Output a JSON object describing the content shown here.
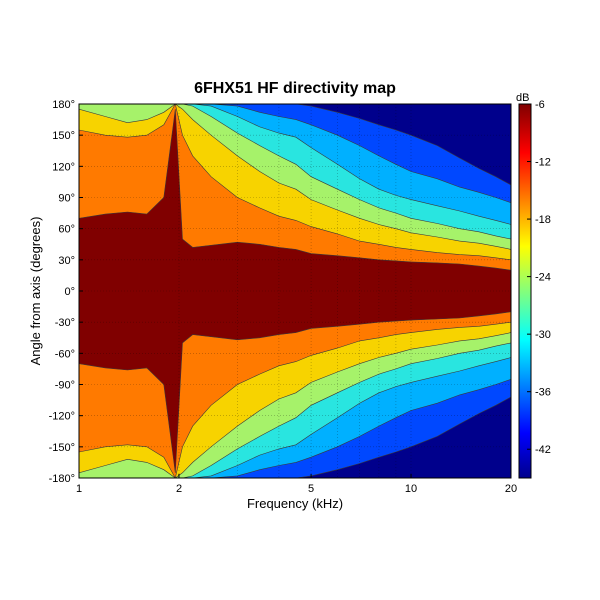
{
  "chart_data": {
    "type": "heatmap",
    "title": "6FHX51 HF directivity map",
    "xlabel": "Frequency (kHz)",
    "ylabel": "Angle from axis (degrees)",
    "x_scale": "log",
    "xlim": [
      1,
      20
    ],
    "ylim": [
      -180,
      180
    ],
    "x_ticks": [
      {
        "value": 1,
        "label": "1"
      },
      {
        "value": 2,
        "label": "2"
      },
      {
        "value": 5,
        "label": "5"
      },
      {
        "value": 10,
        "label": "10"
      },
      {
        "value": 20,
        "label": "20"
      }
    ],
    "y_ticks": [
      {
        "value": 180,
        "label": "180°"
      },
      {
        "value": 150,
        "label": "150°"
      },
      {
        "value": 120,
        "label": "120°"
      },
      {
        "value": 90,
        "label": "90°"
      },
      {
        "value": 60,
        "label": "60°"
      },
      {
        "value": 30,
        "label": "30°"
      },
      {
        "value": 0,
        "label": "0°"
      },
      {
        "value": -30,
        "label": "-30°"
      },
      {
        "value": -60,
        "label": "-60°"
      },
      {
        "value": -90,
        "label": "-90°"
      },
      {
        "value": -120,
        "label": "-120°"
      },
      {
        "value": -150,
        "label": "-150°"
      },
      {
        "value": -180,
        "label": "-180°"
      }
    ],
    "grid": true,
    "colorbar": {
      "unit_label": "dB",
      "range": [
        -45,
        -6
      ],
      "ticks": [
        {
          "value": -6,
          "label": "-6"
        },
        {
          "value": -12,
          "label": "-12"
        },
        {
          "value": -18,
          "label": "-18"
        },
        {
          "value": -24,
          "label": "-24"
        },
        {
          "value": -30,
          "label": "-30"
        },
        {
          "value": -36,
          "label": "-36"
        },
        {
          "value": -42,
          "label": "-42"
        }
      ]
    },
    "contour_levels_db": [
      -6,
      -9,
      -12,
      -15,
      -18,
      -21,
      -24,
      -27,
      -30,
      -33,
      -36,
      -39,
      -42
    ],
    "level_colors": [
      "#800000",
      "#e60000",
      "#ff7a00",
      "#f7d300",
      "#a6f26a",
      "#29e5e0",
      "#00b0ff",
      "#0048ff",
      "#00008c"
    ],
    "isolines": {
      "description": "Angle (degrees) at which the response falls below each level, by frequency (kHz); symmetric about 0°",
      "frequencies_khz": [
        1,
        1.2,
        1.4,
        1.6,
        1.8,
        1.95,
        2.05,
        2.2,
        2.5,
        3,
        3.5,
        4,
        4.5,
        5,
        6,
        7,
        8,
        9,
        10,
        12,
        14,
        16,
        18,
        20
      ],
      "levels": [
        {
          "db": -6,
          "angles": [
            70,
            74,
            76,
            74,
            90,
            175,
            50,
            42,
            44,
            47,
            45,
            42,
            40,
            36,
            34,
            32,
            30,
            29,
            28,
            27,
            26,
            24,
            22,
            20
          ]
        },
        {
          "db": -9,
          "angles": [
            155,
            150,
            148,
            150,
            160,
            180,
            150,
            130,
            110,
            90,
            80,
            72,
            68,
            62,
            55,
            48,
            45,
            42,
            40,
            37,
            35,
            34,
            32,
            30
          ]
        },
        {
          "db": -15,
          "angles": [
            175,
            168,
            162,
            165,
            172,
            180,
            175,
            165,
            150,
            130,
            115,
            104,
            98,
            88,
            78,
            70,
            64,
            60,
            56,
            52,
            48,
            46,
            43,
            40
          ]
        },
        {
          "db": -21,
          "angles": [
            180,
            180,
            180,
            180,
            180,
            180,
            180,
            178,
            168,
            152,
            140,
            130,
            122,
            110,
            98,
            88,
            80,
            75,
            70,
            65,
            60,
            57,
            53,
            50
          ]
        },
        {
          "db": -27,
          "angles": [
            180,
            180,
            180,
            180,
            180,
            180,
            180,
            180,
            178,
            168,
            158,
            152,
            148,
            138,
            122,
            108,
            98,
            92,
            88,
            82,
            77,
            72,
            68,
            64
          ]
        },
        {
          "db": -33,
          "angles": [
            180,
            180,
            180,
            180,
            180,
            180,
            180,
            180,
            180,
            178,
            172,
            168,
            165,
            160,
            150,
            140,
            130,
            122,
            115,
            108,
            100,
            95,
            90,
            85
          ]
        },
        {
          "db": -39,
          "angles": [
            180,
            180,
            180,
            180,
            180,
            180,
            180,
            180,
            180,
            180,
            180,
            180,
            180,
            178,
            172,
            166,
            160,
            155,
            150,
            140,
            128,
            118,
            110,
            102
          ]
        }
      ]
    }
  }
}
